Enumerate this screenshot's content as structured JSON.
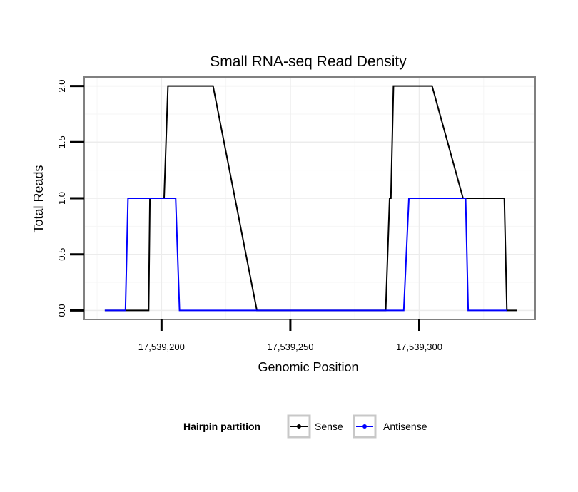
{
  "chart_data": {
    "type": "line",
    "title": "Small RNA-seq Read Density",
    "xlabel": "Genomic Position",
    "ylabel": "Total Reads",
    "xlim": [
      17539170,
      17539345
    ],
    "ylim": [
      -0.08,
      2.08
    ],
    "x_ticks": [
      {
        "value": 17539200,
        "label": "17,539,200"
      },
      {
        "value": 17539250,
        "label": "17,539,250"
      },
      {
        "value": 17539300,
        "label": "17,539,300"
      }
    ],
    "y_ticks": [
      {
        "value": 0.0,
        "label": "0.0"
      },
      {
        "value": 0.5,
        "label": "0.5"
      },
      {
        "value": 1.0,
        "label": "1.0"
      },
      {
        "value": 1.5,
        "label": "1.5"
      },
      {
        "value": 2.0,
        "label": "2.0"
      }
    ],
    "grid": true,
    "legend": {
      "title": "Hairpin partition",
      "position": "bottom"
    },
    "series": [
      {
        "name": "Sense",
        "color": "#000000",
        "x": [
          17539178,
          17539187,
          17539195,
          17539195.5,
          17539198.5,
          17539199,
          17539201,
          17539202.5,
          17539219,
          17539220,
          17539237,
          17539286,
          17539287,
          17539288.5,
          17539289,
          17539290,
          17539304,
          17539305,
          17539317,
          17539333,
          17539334,
          17539338
        ],
        "y": [
          0,
          0,
          0,
          1,
          1,
          1,
          1,
          2,
          2,
          2,
          0,
          0,
          0,
          1,
          1,
          2,
          2,
          2,
          1,
          1,
          0,
          0
        ]
      },
      {
        "name": "Antisense",
        "color": "#0000ff",
        "x": [
          17539178,
          17539186,
          17539187,
          17539196,
          17539205.5,
          17539207,
          17539216,
          17539285,
          17539294,
          17539296,
          17539318,
          17539319,
          17539328,
          17539334
        ],
        "y": [
          0,
          0,
          1,
          1,
          1,
          0,
          0,
          0,
          0,
          1,
          1,
          0,
          0,
          0
        ]
      }
    ]
  }
}
